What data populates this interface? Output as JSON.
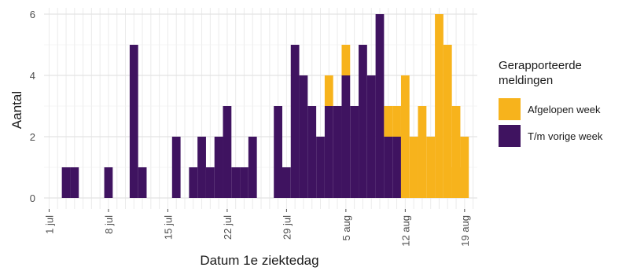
{
  "chart_data": {
    "type": "bar",
    "stacked": true,
    "xlabel": "Datum 1e ziektedag",
    "ylabel": "Aantal",
    "ylim": [
      0,
      6
    ],
    "yticks": [
      0,
      2,
      4,
      6
    ],
    "x_start": "1 jul",
    "x_ticks": [
      {
        "day": 0,
        "label": "1 jul"
      },
      {
        "day": 7,
        "label": "8 jul"
      },
      {
        "day": 14,
        "label": "15 jul"
      },
      {
        "day": 21,
        "label": "22 jul"
      },
      {
        "day": 28,
        "label": "29 jul"
      },
      {
        "day": 35,
        "label": "5 aug"
      },
      {
        "day": 42,
        "label": "12 aug"
      },
      {
        "day": 49,
        "label": "19 aug"
      }
    ],
    "x_domain": [
      -0.6,
      50.5
    ],
    "grid": true,
    "legend": {
      "title": "Gerapporteerde meldingen",
      "placement": "right"
    },
    "series": [
      {
        "name": "T/m vorige week",
        "color": "#3f1360",
        "values": [
          0,
          0,
          1,
          1,
          0,
          0,
          0,
          1,
          0,
          0,
          5,
          1,
          0,
          0,
          0,
          2,
          0,
          1,
          2,
          1,
          2,
          3,
          1,
          1,
          2,
          0,
          0,
          3,
          1,
          5,
          4,
          3,
          2,
          3,
          3,
          4,
          3,
          5,
          4,
          6,
          2,
          2,
          0,
          0,
          0,
          0,
          0,
          0,
          0,
          0,
          0
        ]
      },
      {
        "name": "Afgelopen week",
        "color": "#f7b31c",
        "values": [
          0,
          0,
          0,
          0,
          0,
          0,
          0,
          0,
          0,
          0,
          0,
          0,
          0,
          0,
          0,
          0,
          0,
          0,
          0,
          0,
          0,
          0,
          0,
          0,
          0,
          0,
          0,
          0,
          0,
          0,
          0,
          0,
          0,
          1,
          0,
          1,
          0,
          0,
          0,
          0,
          1,
          1,
          4,
          2,
          3,
          2,
          6,
          5,
          3,
          2,
          0
        ]
      }
    ],
    "extra_bars_note_day_48": 1
  }
}
